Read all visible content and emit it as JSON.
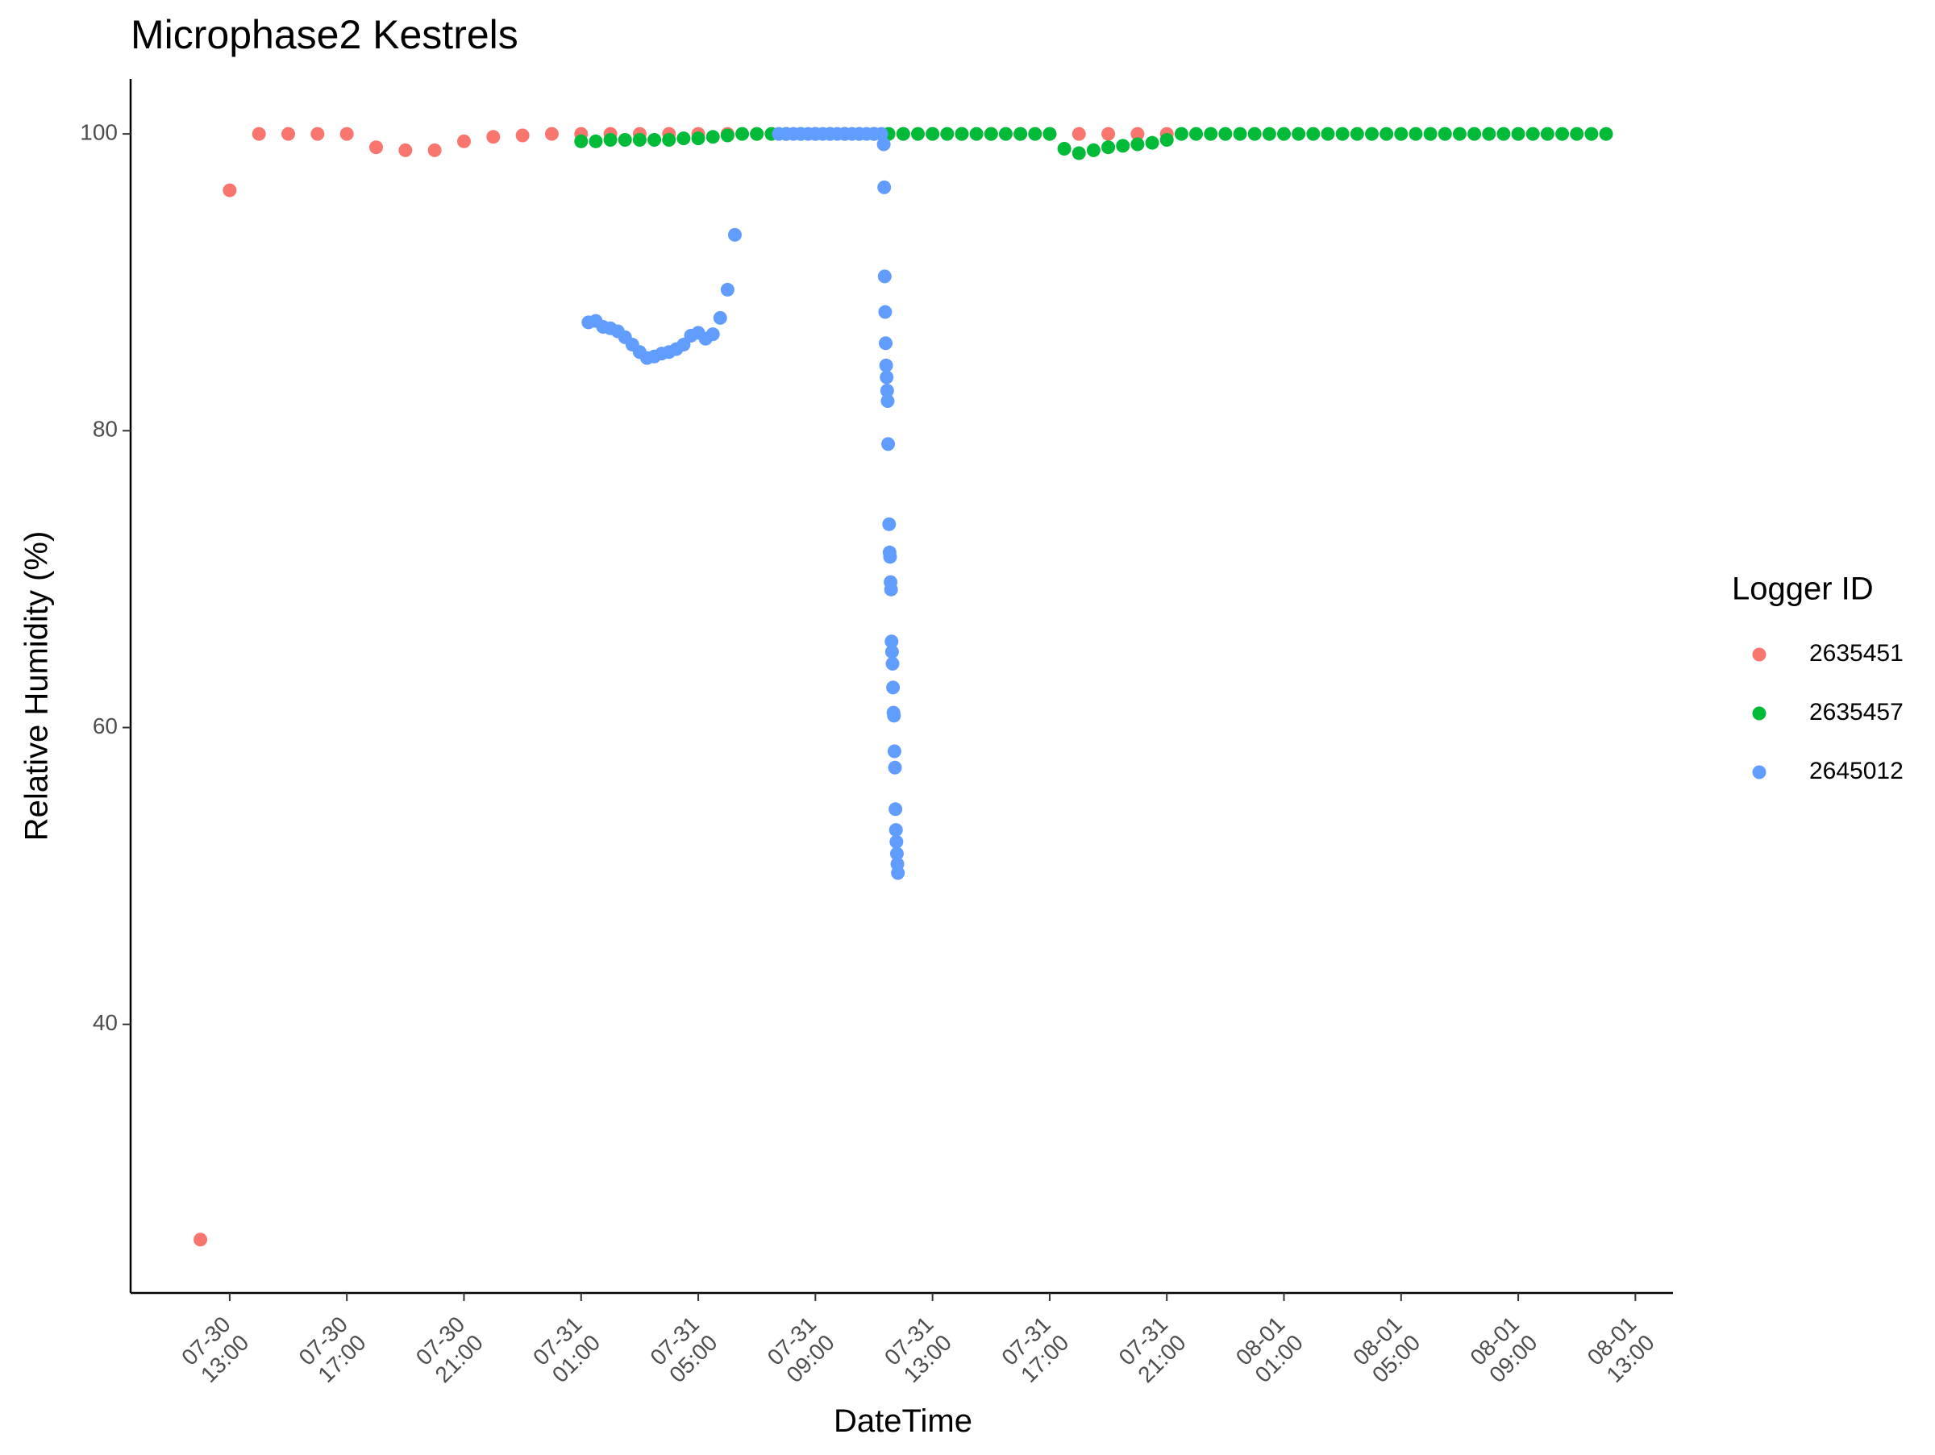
{
  "chart_data": {
    "type": "scatter",
    "title": "Microphase2 Kestrels",
    "xlabel": "DateTime",
    "ylabel": "Relative Humidity (%)",
    "legend_title": "Logger ID",
    "legend": "right",
    "xlim": [
      "07-30 09:37",
      "08-01 14:17"
    ],
    "xticks": [
      "07-30 13:00",
      "07-30 17:00",
      "07-30 21:00",
      "07-31 01:00",
      "07-31 05:00",
      "07-31 09:00",
      "07-31 13:00",
      "07-31 17:00",
      "07-31 21:00",
      "08-01 01:00",
      "08-01 05:00",
      "08-01 09:00",
      "08-01 13:00"
    ],
    "ylim": [
      21.9,
      103.7
    ],
    "yticks": [
      40,
      60,
      80,
      100
    ],
    "series": [
      {
        "name": "2635451",
        "color": "#F8766D",
        "x": [
          "07-30 12:00",
          "07-30 13:00",
          "07-30 14:00",
          "07-30 15:00",
          "07-30 16:00",
          "07-30 17:00",
          "07-30 18:00",
          "07-30 19:00",
          "07-30 20:00",
          "07-30 21:00",
          "07-30 22:00",
          "07-30 23:00",
          "07-31 00:00",
          "07-31 01:00",
          "07-31 02:00",
          "07-31 03:00",
          "07-31 04:00",
          "07-31 05:00",
          "07-31 06:00",
          "07-31 07:00",
          "07-31 08:00",
          "07-31 09:00",
          "07-31 10:00",
          "07-31 11:00",
          "07-31 12:00",
          "07-31 13:00",
          "07-31 14:00",
          "07-31 15:00",
          "07-31 16:00",
          "07-31 17:00",
          "07-31 18:00",
          "07-31 19:00",
          "07-31 20:00",
          "07-31 21:00"
        ],
        "values": [
          25.5,
          96.2,
          100,
          100,
          100,
          100,
          99.1,
          98.9,
          98.9,
          99.5,
          99.8,
          99.9,
          100,
          100,
          100,
          100,
          100,
          100,
          100,
          100,
          100,
          100,
          100,
          100,
          100,
          100,
          100,
          100,
          100,
          100,
          100,
          100,
          100,
          100
        ]
      },
      {
        "name": "2635457",
        "color": "#00BA38",
        "x": [
          "07-31 01:00",
          "07-31 01:30",
          "07-31 02:00",
          "07-31 02:30",
          "07-31 03:00",
          "07-31 03:30",
          "07-31 04:00",
          "07-31 04:30",
          "07-31 05:00",
          "07-31 05:30",
          "07-31 06:00",
          "07-31 06:30",
          "07-31 07:00",
          "07-31 07:30",
          "07-31 08:00",
          "07-31 08:30",
          "07-31 09:00",
          "07-31 09:30",
          "07-31 10:00",
          "07-31 10:30",
          "07-31 11:00",
          "07-31 11:30",
          "07-31 12:00",
          "07-31 12:30",
          "07-31 13:00",
          "07-31 13:30",
          "07-31 14:00",
          "07-31 14:30",
          "07-31 15:00",
          "07-31 15:30",
          "07-31 16:00",
          "07-31 16:30",
          "07-31 17:00",
          "07-31 17:30",
          "07-31 18:00",
          "07-31 18:30",
          "07-31 19:00",
          "07-31 19:30",
          "07-31 20:00",
          "07-31 20:30",
          "07-31 21:00",
          "07-31 21:30",
          "07-31 22:00",
          "07-31 22:30",
          "07-31 23:00",
          "07-31 23:30",
          "08-01 00:00",
          "08-01 00:30",
          "08-01 01:00",
          "08-01 01:30",
          "08-01 02:00",
          "08-01 02:30",
          "08-01 03:00",
          "08-01 03:30",
          "08-01 04:00",
          "08-01 04:30",
          "08-01 05:00",
          "08-01 05:30",
          "08-01 06:00",
          "08-01 06:30",
          "08-01 07:00",
          "08-01 07:30",
          "08-01 08:00",
          "08-01 08:30",
          "08-01 09:00",
          "08-01 09:30",
          "08-01 10:00",
          "08-01 10:30",
          "08-01 11:00",
          "08-01 11:30",
          "08-01 12:00"
        ],
        "values": [
          99.5,
          99.5,
          99.6,
          99.6,
          99.6,
          99.6,
          99.6,
          99.7,
          99.7,
          99.8,
          99.9,
          100,
          100,
          100,
          100,
          100,
          100,
          100,
          100,
          100,
          100,
          100,
          100,
          100,
          100,
          100,
          100,
          100,
          100,
          100,
          100,
          100,
          100,
          99.0,
          98.7,
          98.9,
          99.1,
          99.2,
          99.3,
          99.4,
          99.6,
          100,
          100,
          100,
          100,
          100,
          100,
          100,
          100,
          100,
          100,
          100,
          100,
          100,
          100,
          100,
          100,
          100,
          100,
          100,
          100,
          100,
          100,
          100,
          100,
          100,
          100,
          100,
          100,
          100,
          100
        ]
      },
      {
        "name": "2645012",
        "color": "#619CFF",
        "x": [
          "07-31 01:15",
          "07-31 01:30",
          "07-31 01:45",
          "07-31 02:00",
          "07-31 02:15",
          "07-31 02:30",
          "07-31 02:45",
          "07-31 03:00",
          "07-31 03:15",
          "07-31 03:30",
          "07-31 03:45",
          "07-31 04:00",
          "07-31 04:15",
          "07-31 04:30",
          "07-31 04:45",
          "07-31 05:00",
          "07-31 05:15",
          "07-31 05:30",
          "07-31 05:45",
          "07-31 06:00",
          "07-31 06:15",
          "07-31 07:45",
          "07-31 08:00",
          "07-31 08:15",
          "07-31 08:30",
          "07-31 08:45",
          "07-31 09:00",
          "07-31 09:15",
          "07-31 09:30",
          "07-31 09:45",
          "07-31 10:00",
          "07-31 10:15",
          "07-31 10:30",
          "07-31 10:45",
          "07-31 11:00",
          "07-31 11:15",
          "07-31 11:20",
          "07-31 11:21",
          "07-31 11:22",
          "07-31 11:23",
          "07-31 11:24",
          "07-31 11:25",
          "07-31 11:26",
          "07-31 11:27",
          "07-31 11:28",
          "07-31 11:29",
          "07-31 11:31",
          "07-31 11:32",
          "07-31 11:33",
          "07-31 11:34",
          "07-31 11:35",
          "07-31 11:36",
          "07-31 11:37",
          "07-31 11:38",
          "07-31 11:39",
          "07-31 11:40",
          "07-31 11:41",
          "07-31 11:42",
          "07-31 11:43",
          "07-31 11:44",
          "07-31 11:45",
          "07-31 11:46",
          "07-31 11:47",
          "07-31 11:48",
          "07-31 11:49"
        ],
        "values": [
          87.3,
          87.4,
          87.0,
          86.9,
          86.7,
          86.3,
          85.8,
          85.3,
          84.9,
          85.0,
          85.2,
          85.3,
          85.5,
          85.8,
          86.4,
          86.6,
          86.2,
          86.5,
          87.6,
          89.5,
          93.2,
          100,
          100,
          100,
          100,
          100,
          100,
          100,
          100,
          100,
          100,
          100,
          100,
          100,
          100,
          100,
          99.3,
          96.4,
          90.4,
          88.0,
          85.9,
          84.4,
          83.6,
          82.7,
          82.0,
          79.1,
          73.7,
          71.8,
          71.5,
          69.8,
          69.3,
          65.8,
          65.1,
          64.3,
          62.7,
          61.0,
          60.8,
          58.4,
          57.3,
          54.5,
          53.1,
          52.3,
          51.5,
          50.8,
          50.2
        ]
      }
    ]
  }
}
